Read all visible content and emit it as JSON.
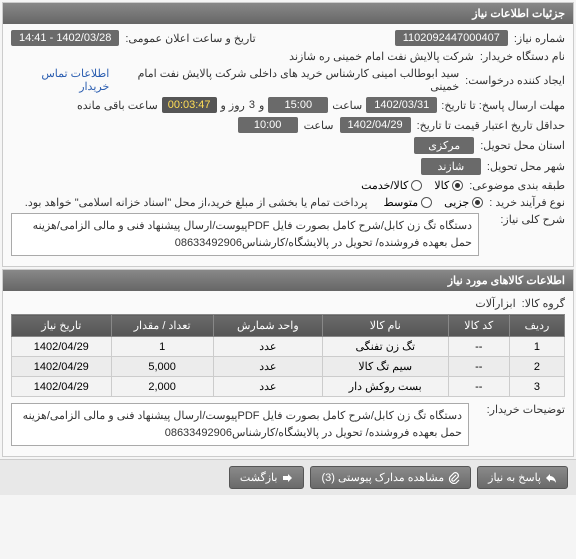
{
  "panel1": {
    "title": "جزئیات اطلاعات نیاز",
    "need_number_label": "شماره نیاز:",
    "need_number": "1102092447000407",
    "announce_label": "تاریخ و ساعت اعلان عمومی:",
    "announce_value": "1402/03/28 - 14:41",
    "buyer_label": "نام دستگاه خریدار:",
    "buyer_value": "شرکت پالایش نفت امام خمینی  ره  شازند",
    "creator_label": "ایجاد کننده درخواست:",
    "creator_value": "سید ابوطالب  امینی کارشناس خرید های داخلی  شرکت پالایش نفت امام خمینی",
    "contact_link": "اطلاعات تماس خریدار",
    "deadline_label": "مهلت ارسال پاسخ: تا تاریخ:",
    "deadline_date": "1402/03/31",
    "saat1": "ساعت",
    "deadline_time": "15:00",
    "days_label1": "و",
    "days_value": "3",
    "days_label2": "روز و",
    "countdown": "00:03:47",
    "remain_label": "ساعت باقی مانده",
    "validity_label": "حداقل تاریخ اعتبار قیمت تا تاریخ:",
    "validity_date": "1402/04/29",
    "saat2": "ساعت",
    "validity_time": "10:00",
    "province_label": "استان محل تحویل:",
    "province_value": "مرکزی",
    "city_label": "شهر محل تحویل:",
    "city_value": "شازند",
    "category_label": "طبقه بندی موضوعی:",
    "cat_kala": "کالا",
    "cat_service": "کالا/خدمت",
    "buy_type_label": "نوع فرآیند خرید :",
    "bt_partial": "جزیی",
    "bt_medium": "متوسط",
    "buy_note": "پرداخت تمام یا بخشی از مبلغ خرید،از محل \"اسناد خزانه اسلامی\" خواهد بود.",
    "summary_label": "شرح کلی نیاز:",
    "summary_text": "دستگاه تگ زن کابل/شرح کامل بصورت فایل PDFپیوست/ارسال پیشنهاد فنی و مالی الزامی/هزینه حمل بعهده فروشنده/ تحویل در پالایشگاه/کارشناس08633492906"
  },
  "panel2": {
    "title": "اطلاعات کالاهای مورد نیاز",
    "group_label": "گروه کالا:",
    "group_value": "ابزارآلات",
    "columns": [
      "ردیف",
      "کد کالا",
      "نام کالا",
      "واحد شمارش",
      "تعداد / مقدار",
      "تاریخ نیاز"
    ],
    "rows": [
      [
        "1",
        "--",
        "تگ زن تفنگی",
        "عدد",
        "1",
        "1402/04/29"
      ],
      [
        "2",
        "--",
        "سیم تگ کالا",
        "عدد",
        "5,000",
        "1402/04/29"
      ],
      [
        "3",
        "--",
        "بست روکش دار",
        "عدد",
        "2,000",
        "1402/04/29"
      ]
    ],
    "notes_label": "توضیحات خریدار:",
    "notes_text": "دستگاه تگ زن کابل/شرح کامل بصورت فایل PDFپیوست/ارسال پیشنهاد فنی و مالی الزامی/هزینه حمل بعهده فروشنده/ تحویل در پالایشگاه/کارشناس08633492906"
  },
  "footer": {
    "respond": "پاسخ به نیاز",
    "attachments": "مشاهده مدارک پیوستی  (3)",
    "back": "بازگشت"
  },
  "colors": {
    "header_bg": "#6a6a6a",
    "value_bg": "#6a6a6a",
    "link": "#2a5db0",
    "countdown_bg": "#555555",
    "countdown_fg": "#ffdd55"
  }
}
